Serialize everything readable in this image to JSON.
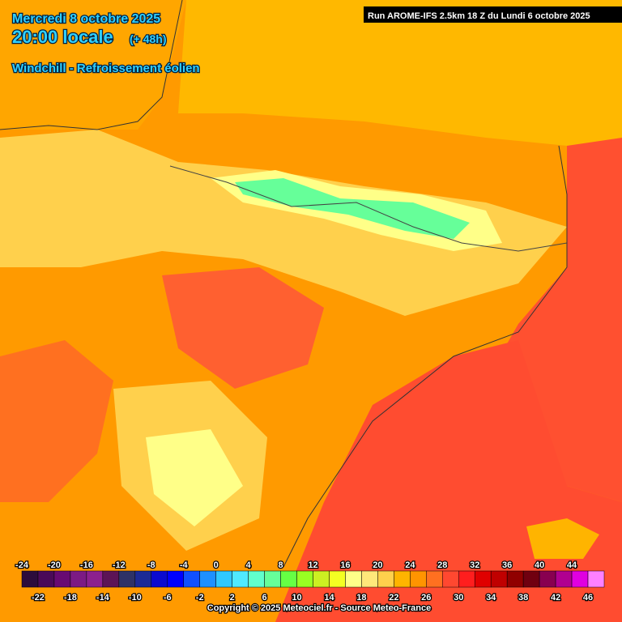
{
  "header": {
    "date": "Mercredi 8 octobre 2025",
    "time": "20:00 locale",
    "offset": "(+ 48h)",
    "parameter": "Windchill - Refroissement éolien",
    "run": "Run AROME-IFS 2.5km 18 Z du Lundi 6 octobre 2025"
  },
  "legend": {
    "items": [
      {
        "value": -24,
        "color": "#2c0c3c"
      },
      {
        "value": -22,
        "color": "#4a0a58"
      },
      {
        "value": -20,
        "color": "#680a72"
      },
      {
        "value": -18,
        "color": "#7c1a84"
      },
      {
        "value": -16,
        "color": "#8c208e"
      },
      {
        "value": -14,
        "color": "#5c1456"
      },
      {
        "value": -12,
        "color": "#2e3266"
      },
      {
        "value": -10,
        "color": "#1c2a96"
      },
      {
        "value": -8,
        "color": "#0a0ad0"
      },
      {
        "value": -6,
        "color": "#0000ff"
      },
      {
        "value": -4,
        "color": "#1050ff"
      },
      {
        "value": -2,
        "color": "#1e90ff"
      },
      {
        "value": 0,
        "color": "#30c8ff"
      },
      {
        "value": 2,
        "color": "#50eaff"
      },
      {
        "value": 4,
        "color": "#60ffcc"
      },
      {
        "value": 6,
        "color": "#66ff99"
      },
      {
        "value": 8,
        "color": "#66ff44"
      },
      {
        "value": 10,
        "color": "#99ff22"
      },
      {
        "value": 12,
        "color": "#ccf022"
      },
      {
        "value": 14,
        "color": "#f4ff22"
      },
      {
        "value": 16,
        "color": "#ffff88"
      },
      {
        "value": 18,
        "color": "#ffe87a"
      },
      {
        "value": 20,
        "color": "#ffd04c"
      },
      {
        "value": 22,
        "color": "#ffb400"
      },
      {
        "value": 24,
        "color": "#ff9400"
      },
      {
        "value": 26,
        "color": "#ff7020"
      },
      {
        "value": 28,
        "color": "#ff4830"
      },
      {
        "value": 30,
        "color": "#ff1e1e"
      },
      {
        "value": 32,
        "color": "#e00000"
      },
      {
        "value": 34,
        "color": "#c00000"
      },
      {
        "value": 36,
        "color": "#900000"
      },
      {
        "value": 38,
        "color": "#700010"
      },
      {
        "value": 40,
        "color": "#880050"
      },
      {
        "value": 42,
        "color": "#b00090"
      },
      {
        "value": 44,
        "color": "#e000e0"
      },
      {
        "value": 46,
        "color": "#ff80ff"
      }
    ]
  },
  "footer": {
    "copyright": "Copyright © 2025 Meteociel.fr - Source Meteo-France"
  }
}
